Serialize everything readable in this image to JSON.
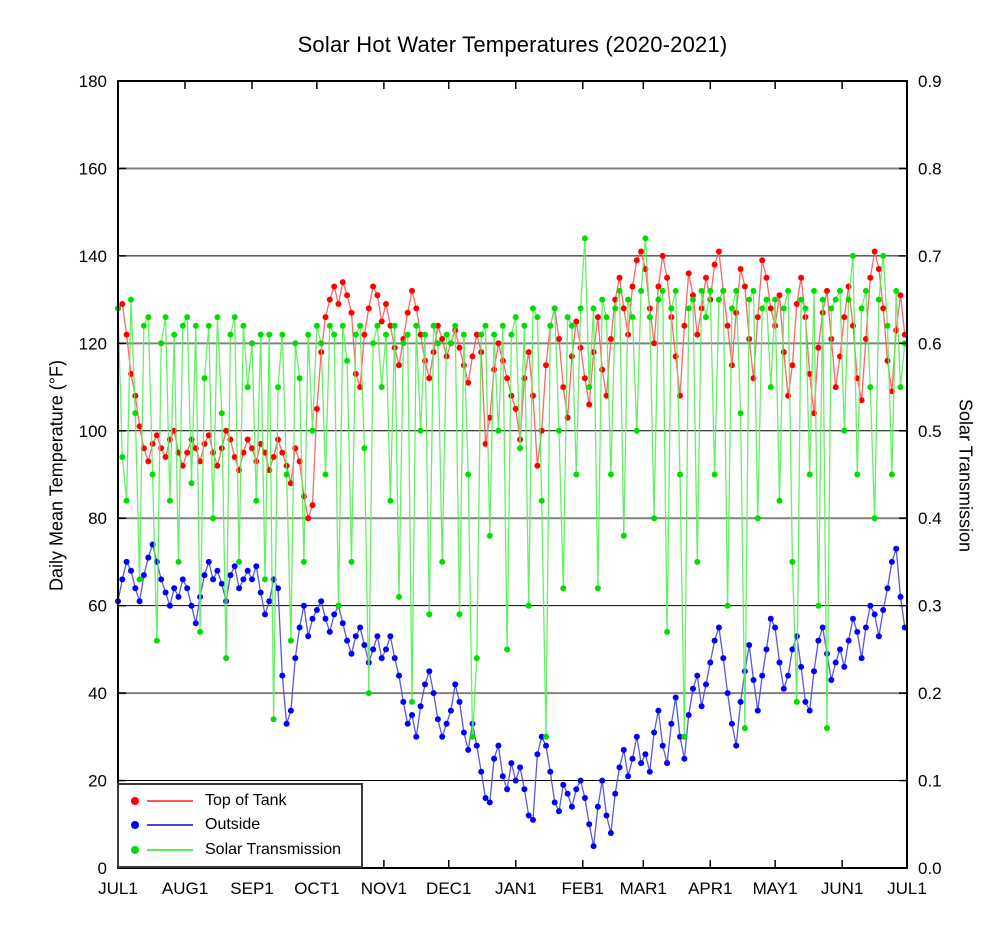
{
  "title": "Solar Hot Water Temperatures (2020-2021)",
  "left_axis": {
    "label": "Daily Mean Temperature (°F)",
    "min": 0,
    "max": 180,
    "tick_step": 20,
    "tick_values": [
      0,
      20,
      40,
      60,
      80,
      100,
      120,
      140,
      160,
      180
    ],
    "tick_labels": [
      "0",
      "20",
      "40",
      "60",
      "80",
      "100",
      "120",
      "140",
      "160",
      "180"
    ]
  },
  "right_axis": {
    "label": "Solar Transmission",
    "min": 0.0,
    "max": 0.9,
    "tick_step": 0.1,
    "tick_values": [
      0,
      0.1,
      0.2,
      0.3,
      0.4,
      0.5,
      0.6,
      0.7,
      0.8,
      0.9
    ],
    "tick_labels": [
      "0.0",
      "0.1",
      "0.2",
      "0.3",
      "0.4",
      "0.5",
      "0.6",
      "0.7",
      "0.8",
      "0.9"
    ]
  },
  "x_axis": {
    "tick_labels": [
      "JUL1",
      "AUG1",
      "SEP1",
      "OCT1",
      "NOV1",
      "DEC1",
      "JAN1",
      "FEB1",
      "MAR1",
      "APR1",
      "MAY1",
      "JUN1",
      "JUL1"
    ],
    "tick_days": [
      0,
      31,
      62,
      92,
      123,
      153,
      184,
      215,
      243,
      274,
      304,
      335,
      365
    ],
    "days_total": 365
  },
  "grid": {
    "major_lines_temp": [
      40,
      80,
      120,
      160
    ],
    "major_color": "#808080",
    "major_width": 2,
    "minor_lines_temp": [
      20,
      60,
      100,
      140
    ],
    "minor_color": "#000000",
    "minor_width": 1,
    "border_color": "#000000",
    "tick_color": "#000000"
  },
  "legend": {
    "items": [
      {
        "label": "Top of Tank",
        "color": "#ff0000",
        "line_color": "#ff5555"
      },
      {
        "label": "Outside",
        "color": "#0000ff",
        "line_color": "#4747dd"
      },
      {
        "label": "Solar Transmission",
        "color": "#00dd00",
        "line_color": "#55ee55"
      }
    ]
  },
  "chart_data": {
    "type": "line",
    "x_mode": "uniform-days-from-JUL1",
    "x_start_day": 0,
    "x_step_days": 2,
    "xlim_days": [
      0,
      365
    ],
    "ylim_left": [
      0,
      180
    ],
    "ylim_right": [
      0.0,
      0.9
    ],
    "grid": "horizontal-only",
    "legend_position": "bottom-left",
    "series": [
      {
        "name": "Top of Tank",
        "axis": "left",
        "units": "°F",
        "color": "#ff0000",
        "line_color": "#ff5555",
        "values": [
          128,
          129,
          122,
          113,
          108,
          101,
          96,
          93,
          97,
          99,
          96,
          94,
          98,
          100,
          95,
          92,
          95,
          98,
          96,
          93,
          97,
          99,
          95,
          92,
          96,
          100,
          98,
          94,
          91,
          95,
          98,
          96,
          93,
          97,
          95,
          91,
          94,
          98,
          95,
          92,
          88,
          96,
          93,
          85,
          80,
          83,
          105,
          118,
          126,
          130,
          133,
          129,
          134,
          131,
          127,
          113,
          110,
          122,
          128,
          133,
          131,
          125,
          129,
          124,
          119,
          115,
          121,
          127,
          132,
          128,
          122,
          116,
          112,
          118,
          124,
          121,
          117,
          120,
          123,
          119,
          115,
          111,
          117,
          122,
          118,
          97,
          103,
          114,
          120,
          116,
          112,
          108,
          105,
          98,
          112,
          118,
          108,
          92,
          100,
          115,
          124,
          128,
          121,
          110,
          103,
          117,
          125,
          119,
          112,
          106,
          118,
          126,
          114,
          108,
          121,
          130,
          135,
          128,
          122,
          133,
          139,
          141,
          137,
          128,
          120,
          133,
          140,
          135,
          126,
          117,
          108,
          124,
          136,
          131,
          122,
          128,
          135,
          130,
          138,
          141,
          132,
          124,
          115,
          127,
          137,
          133,
          121,
          112,
          126,
          139,
          135,
          128,
          124,
          131,
          118,
          108,
          115,
          129,
          135,
          126,
          113,
          104,
          119,
          127,
          132,
          121,
          110,
          117,
          126,
          133,
          124,
          112,
          107,
          121,
          135,
          141,
          137,
          128,
          116,
          109,
          123,
          131,
          122
        ]
      },
      {
        "name": "Outside",
        "axis": "left",
        "units": "°F",
        "color": "#0000ff",
        "line_color": "#4747dd",
        "values": [
          61,
          66,
          70,
          68,
          64,
          61,
          67,
          71,
          74,
          70,
          66,
          63,
          60,
          64,
          62,
          66,
          64,
          60,
          56,
          62,
          67,
          70,
          66,
          68,
          65,
          61,
          67,
          69,
          64,
          66,
          68,
          66,
          69,
          63,
          58,
          61,
          66,
          64,
          44,
          33,
          36,
          48,
          55,
          60,
          53,
          57,
          59,
          61,
          57,
          54,
          58,
          60,
          56,
          52,
          49,
          53,
          55,
          51,
          47,
          50,
          53,
          48,
          50,
          53,
          48,
          44,
          38,
          33,
          35,
          30,
          37,
          42,
          45,
          40,
          34,
          30,
          33,
          36,
          42,
          38,
          31,
          27,
          33,
          28,
          22,
          16,
          15,
          25,
          28,
          21,
          18,
          24,
          20,
          23,
          18,
          12,
          11,
          26,
          30,
          28,
          22,
          15,
          13,
          19,
          17,
          14,
          18,
          20,
          16,
          10,
          5,
          14,
          20,
          12,
          8,
          17,
          23,
          27,
          21,
          25,
          30,
          24,
          26,
          22,
          31,
          36,
          28,
          24,
          33,
          39,
          30,
          25,
          35,
          41,
          44,
          37,
          42,
          47,
          52,
          55,
          48,
          40,
          33,
          28,
          38,
          45,
          51,
          43,
          36,
          44,
          50,
          57,
          55,
          47,
          41,
          44,
          50,
          53,
          46,
          38,
          36,
          45,
          52,
          55,
          49,
          43,
          47,
          50,
          46,
          52,
          57,
          54,
          48,
          55,
          60,
          58,
          53,
          59,
          64,
          70,
          73,
          62,
          55
        ]
      },
      {
        "name": "Solar Transmission",
        "axis": "right",
        "units": "fraction",
        "color": "#00dd00",
        "line_color": "#55ee55",
        "values": [
          0.64,
          0.47,
          0.42,
          0.65,
          0.52,
          0.33,
          0.62,
          0.63,
          0.45,
          0.26,
          0.6,
          0.63,
          0.42,
          0.61,
          0.35,
          0.62,
          0.63,
          0.44,
          0.62,
          0.27,
          0.56,
          0.62,
          0.4,
          0.63,
          0.52,
          0.24,
          0.61,
          0.63,
          0.35,
          0.62,
          0.55,
          0.6,
          0.42,
          0.61,
          0.33,
          0.61,
          0.17,
          0.55,
          0.61,
          0.45,
          0.26,
          0.6,
          0.56,
          0.35,
          0.61,
          0.5,
          0.62,
          0.6,
          0.45,
          0.62,
          0.61,
          0.3,
          0.62,
          0.58,
          0.35,
          0.61,
          0.62,
          0.48,
          0.2,
          0.6,
          0.62,
          0.55,
          0.61,
          0.42,
          0.62,
          0.31,
          0.6,
          0.61,
          0.19,
          0.62,
          0.5,
          0.61,
          0.29,
          0.62,
          0.6,
          0.35,
          0.61,
          0.6,
          0.62,
          0.29,
          0.61,
          0.45,
          0.15,
          0.24,
          0.61,
          0.62,
          0.38,
          0.61,
          0.5,
          0.62,
          0.25,
          0.61,
          0.63,
          0.48,
          0.62,
          0.3,
          0.64,
          0.63,
          0.42,
          0.15,
          0.62,
          0.64,
          0.5,
          0.32,
          0.63,
          0.62,
          0.45,
          0.64,
          0.72,
          0.55,
          0.64,
          0.32,
          0.65,
          0.63,
          0.45,
          0.64,
          0.66,
          0.38,
          0.65,
          0.63,
          0.5,
          0.66,
          0.72,
          0.63,
          0.4,
          0.65,
          0.66,
          0.27,
          0.64,
          0.66,
          0.45,
          0.15,
          0.64,
          0.65,
          0.35,
          0.66,
          0.63,
          0.66,
          0.45,
          0.65,
          0.66,
          0.3,
          0.64,
          0.66,
          0.52,
          0.16,
          0.65,
          0.66,
          0.4,
          0.64,
          0.65,
          0.55,
          0.65,
          0.42,
          0.64,
          0.66,
          0.35,
          0.19,
          0.65,
          0.64,
          0.45,
          0.66,
          0.3,
          0.65,
          0.16,
          0.64,
          0.65,
          0.66,
          0.5,
          0.65,
          0.7,
          0.45,
          0.64,
          0.66,
          0.55,
          0.4,
          0.65,
          0.7,
          0.62,
          0.45,
          0.66,
          0.55,
          0.6
        ]
      }
    ]
  }
}
